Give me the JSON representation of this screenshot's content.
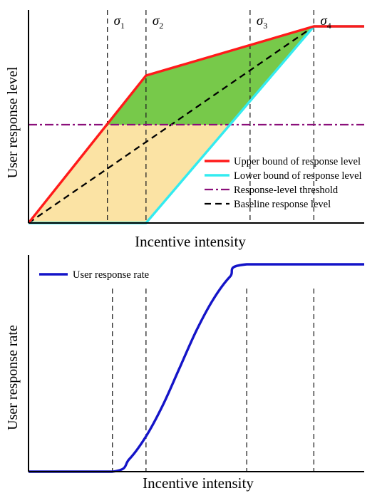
{
  "chart_data": [
    {
      "type": "line",
      "title": "",
      "xlabel": "Incentive intensity",
      "ylabel": "User response level",
      "xlim": [
        0,
        10
      ],
      "ylim": [
        0,
        10
      ],
      "sigma_lines": [
        {
          "label": "σ",
          "sub": "1",
          "x": 2.35
        },
        {
          "label": "σ",
          "sub": "2",
          "x": 3.5
        },
        {
          "label": "σ",
          "sub": "3",
          "x": 6.6
        },
        {
          "label": "σ",
          "sub": "4",
          "x": 8.5
        }
      ],
      "series": [
        {
          "name": "Upper bound of response level",
          "color": "#ff1a1a",
          "style": "solid",
          "points": [
            [
              0,
              0
            ],
            [
              3.5,
              7.5
            ],
            [
              8.5,
              10
            ],
            [
              10,
              10
            ]
          ]
        },
        {
          "name": "Lower bound of response level",
          "color": "#33ebf0",
          "style": "solid",
          "points": [
            [
              0,
              0
            ],
            [
              3.5,
              0
            ],
            [
              8.5,
              10
            ],
            [
              10,
              10
            ]
          ]
        },
        {
          "name": "Response-level threshold",
          "color": "#8b0f7a",
          "style": "dashdot",
          "points": [
            [
              0,
              5
            ],
            [
              10,
              5
            ]
          ]
        },
        {
          "name": "Baseline response level",
          "color": "#000000",
          "style": "dashed",
          "points": [
            [
              0,
              0
            ],
            [
              8.5,
              10
            ],
            [
              10,
              10
            ]
          ]
        }
      ],
      "regions": [
        {
          "label": "above-threshold",
          "color": "#77c94a"
        },
        {
          "label": "below-threshold",
          "color": "#fbe3a4"
        }
      ],
      "legend": "bottom-right"
    },
    {
      "type": "line",
      "title": "",
      "xlabel": "Incentive intensity",
      "ylabel": "User response rate",
      "xlim": [
        0,
        10
      ],
      "ylim": [
        0,
        10
      ],
      "sigma_lines_x": [
        2.5,
        3.5,
        6.5,
        8.5
      ],
      "series": [
        {
          "name": "User response rate",
          "color": "#1414c8",
          "style": "solid",
          "points": [
            [
              0,
              0
            ],
            [
              2.5,
              0
            ],
            [
              3.0,
              0.6
            ],
            [
              3.5,
              1.7
            ],
            [
              4.0,
              3.2
            ],
            [
              4.5,
              5.0
            ],
            [
              5.0,
              6.8
            ],
            [
              5.5,
              8.3
            ],
            [
              6.0,
              9.4
            ],
            [
              6.5,
              10
            ],
            [
              10,
              10
            ]
          ]
        }
      ],
      "legend": "top-left"
    }
  ]
}
